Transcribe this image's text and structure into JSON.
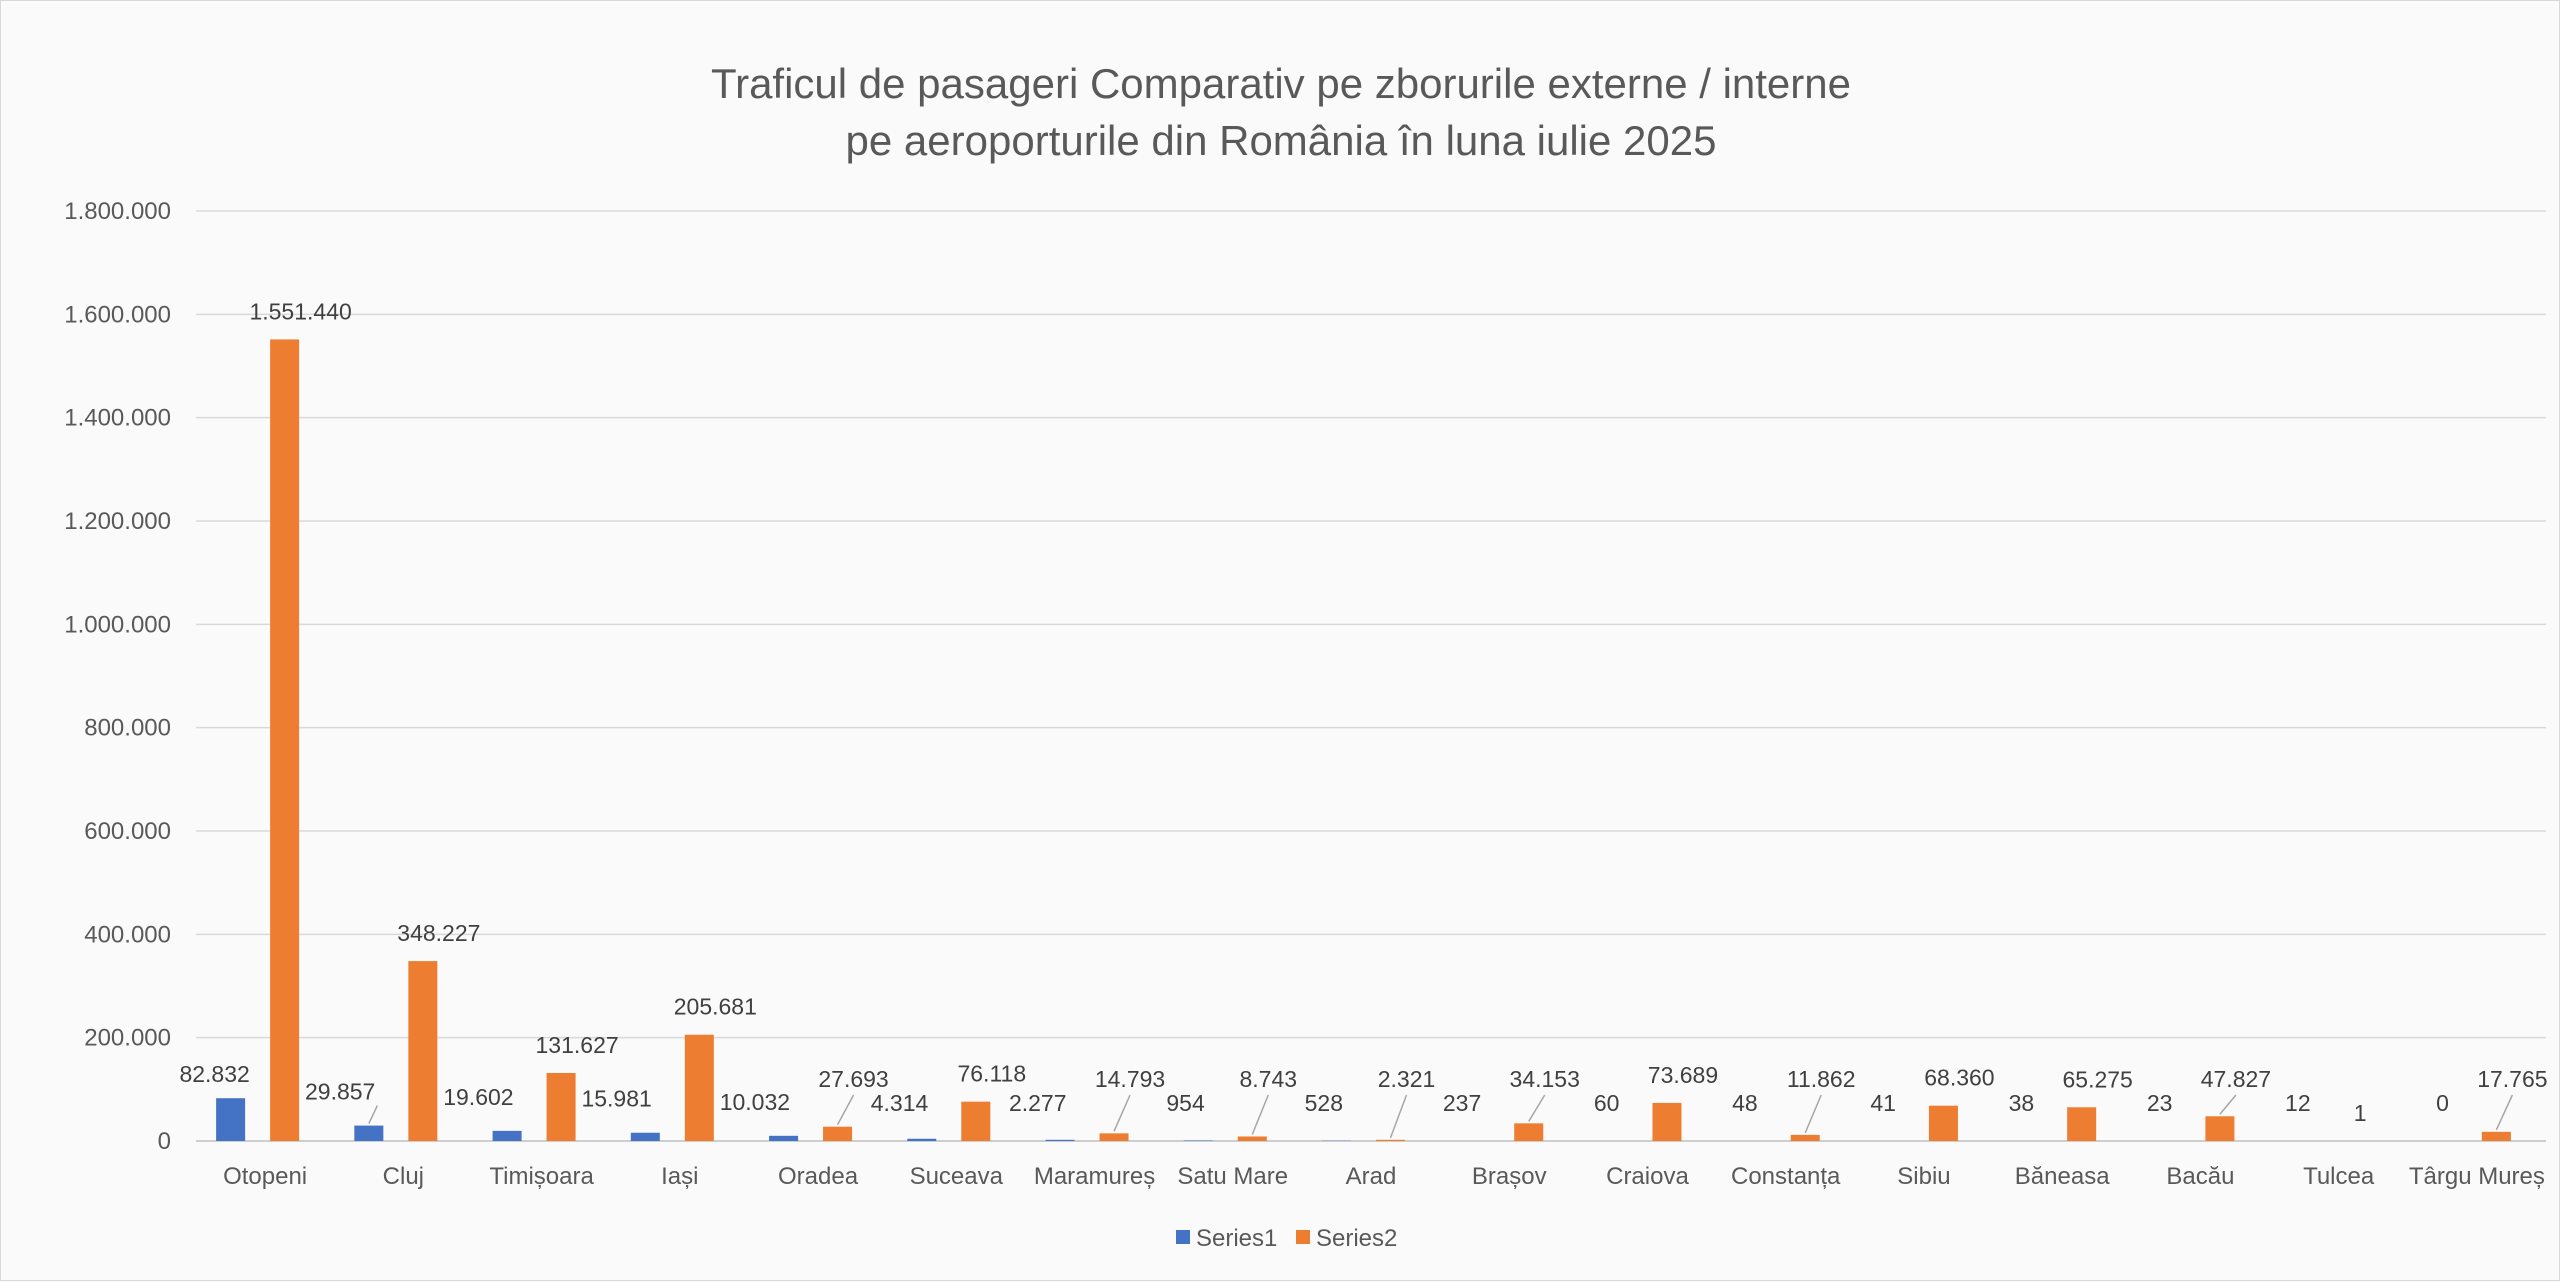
{
  "chart_data": {
    "type": "bar",
    "title": "Traficul de pasageri Comparativ pe zborurile externe / interne\npe aeroporturile din România  în luna iulie 2025",
    "title_lines": [
      "Traficul de pasageri Comparativ pe zborurile externe / interne",
      "pe aeroporturile din România  în luna iulie 2025"
    ],
    "xlabel": "",
    "ylabel": "",
    "ylim": [
      0,
      1800000
    ],
    "yticks": [
      0,
      200000,
      400000,
      600000,
      800000,
      1000000,
      1200000,
      1400000,
      1600000,
      1800000
    ],
    "ytick_labels": [
      "0",
      "200.000",
      "400.000",
      "600.000",
      "800.000",
      "1.000.000",
      "1.200.000",
      "1.400.000",
      "1.600.000",
      "1.800.000"
    ],
    "grid": true,
    "legend_position": "bottom",
    "categories": [
      "Otopeni",
      "Cluj",
      "Timișoara",
      "Iași",
      "Oradea",
      "Suceava",
      "Maramureș",
      "Satu Mare",
      "Arad",
      "Brașov",
      "Craiova",
      "Constanța",
      "Sibiu",
      "Băneasa",
      "Bacău",
      "Tulcea",
      "Târgu Mureș"
    ],
    "series": [
      {
        "name": "Series1",
        "color": "#4472c4",
        "values": [
          82832,
          29857,
          19602,
          15981,
          10032,
          4314,
          2277,
          954,
          528,
          237,
          60,
          48,
          41,
          38,
          23,
          12,
          0
        ],
        "labels": [
          "82.832",
          "29.857",
          "19.602",
          "15.981",
          "10.032",
          "4.314",
          "2.277",
          "954",
          "528",
          "237",
          "60",
          "48",
          "41",
          "38",
          "23",
          "12",
          "0"
        ]
      },
      {
        "name": "Series2",
        "color": "#ed7d31",
        "values": [
          1551440,
          348227,
          131627,
          205681,
          27693,
          76118,
          14793,
          8743,
          2321,
          34153,
          73689,
          11862,
          68360,
          65275,
          47827,
          1,
          17765
        ],
        "labels": [
          "1.551.440",
          "348.227",
          "131.627",
          "205.681",
          "27.693",
          "76.118",
          "14.793",
          "8.743",
          "2.321",
          "34.153",
          "73.689",
          "11.862",
          "68.360",
          "65.275",
          "47.827",
          "1",
          "17.765"
        ]
      }
    ]
  }
}
